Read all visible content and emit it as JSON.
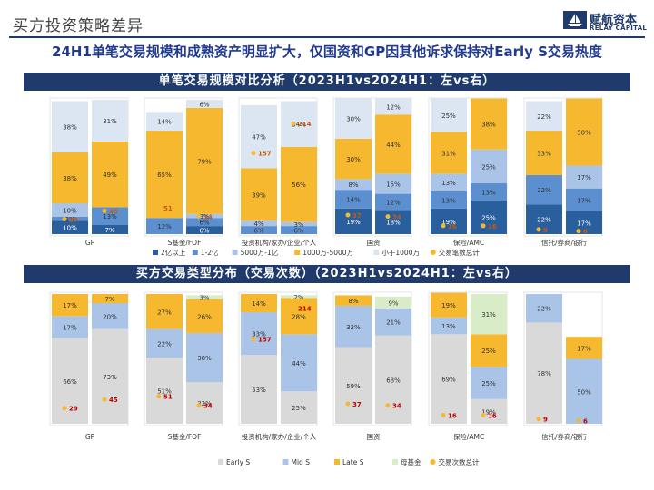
{
  "header": {
    "title": "买方投资策略差异"
  },
  "logo": {
    "cn": "赋航资本",
    "en": "RELAY CAPITAL"
  },
  "headline": "24H1单笔交易规模和成熟资产明显扩大，仅国资和GP因其他诉求保持对Early S交易热度",
  "colors": {
    "navy": "#1f3a6b",
    "dark_blue": "#2a5f9e",
    "mid_blue": "#5b8fcf",
    "light_blue": "#a9c4e6",
    "gold": "#f5b82e",
    "pale": "#dce6f2",
    "gray": "#d9d9d9",
    "green": "#d8ecc8",
    "red": "#c00000",
    "dot": "#f5b82e"
  },
  "chart_data": [
    {
      "type": "bar",
      "title": "单笔交易规模对比分析（2023H1vs2024H1：左vs右）",
      "categories": [
        "GP",
        "S基金/FOF",
        "投资机构/家办/企业/个人",
        "国资",
        "保险/AMC",
        "信托/券商/银行"
      ],
      "periods": [
        "2023H1",
        "2024H1"
      ],
      "series": [
        {
          "name": "2亿以上",
          "values": [
            [
              10,
              7
            ],
            [
              0,
              6
            ],
            [
              0,
              0
            ],
            [
              19,
              18
            ],
            [
              19,
              25
            ],
            [
              22,
              17
            ]
          ],
          "labels": [
            [
              "10%",
              "7%"
            ],
            [
              "",
              "6%"
            ],
            [
              "",
              ""
            ],
            [
              "19%",
              "18%"
            ],
            [
              "19%",
              "25%"
            ],
            [
              "22%",
              "17%"
            ]
          ]
        },
        {
          "name": "1-2亿",
          "values": [
            [
              3,
              13
            ],
            [
              12,
              6
            ],
            [
              6,
              6
            ],
            [
              14,
              12
            ],
            [
              13,
              13
            ],
            [
              22,
              17
            ]
          ],
          "labels": [
            [
              "3%",
              "13%"
            ],
            [
              "12%",
              "6%"
            ],
            [
              "6%",
              "6%"
            ],
            [
              "14%",
              "12%"
            ],
            [
              "13%",
              "13%"
            ],
            [
              "22%",
              "17%"
            ]
          ]
        },
        {
          "name": "5000万-1亿",
          "values": [
            [
              10,
              0
            ],
            [
              0,
              3
            ],
            [
              4,
              3
            ],
            [
              8,
              15
            ],
            [
              13,
              25
            ],
            [
              0,
              17
            ]
          ],
          "labels": [
            [
              "10%",
              ""
            ],
            [
              "",
              "3%"
            ],
            [
              "4%",
              "3%"
            ],
            [
              "8%",
              "15%"
            ],
            [
              "13%",
              "25%"
            ],
            [
              "",
              "17%"
            ]
          ]
        },
        {
          "name": "1000万-5000万",
          "values": [
            [
              38,
              49
            ],
            [
              65,
              79
            ],
            [
              39,
              56
            ],
            [
              30,
              44
            ],
            [
              31,
              38
            ],
            [
              33,
              50
            ]
          ],
          "labels": [
            [
              "38%",
              "49%"
            ],
            [
              "65%",
              "79%"
            ],
            [
              "39%",
              "56%"
            ],
            [
              "30%",
              "44%"
            ],
            [
              "31%",
              "38%"
            ],
            [
              "33%",
              "50%"
            ]
          ]
        },
        {
          "name": "小于1000万",
          "values": [
            [
              38,
              31
            ],
            [
              14,
              6
            ],
            [
              47,
              34
            ],
            [
              30,
              12
            ],
            [
              25,
              0
            ],
            [
              22,
              0
            ]
          ],
          "labels": [
            [
              "38%",
              "31%"
            ],
            [
              "14%",
              "6%"
            ],
            [
              "47%",
              "34%"
            ],
            [
              "30%",
              "12%"
            ],
            [
              "25%",
              ""
            ],
            [
              "22%",
              ""
            ]
          ]
        }
      ],
      "line": {
        "name": "交易笔数总计",
        "values": [
          [
            29,
            45
          ],
          [
            51,
            34
          ],
          [
            157,
            214
          ],
          [
            37,
            34
          ],
          [
            16,
            16
          ],
          [
            9,
            6
          ]
        ]
      },
      "legend": [
        "2亿以上",
        "1-2亿",
        "5000万-1亿",
        "1000万-5000万",
        "小于1000万",
        "交易笔数总计"
      ]
    },
    {
      "type": "bar",
      "title": "买方交易类型分布（交易次数）（2023H1vs2024H1：左vs右）",
      "categories": [
        "GP",
        "S基金/FOF",
        "投资机构/家办/企业/个人",
        "国资",
        "保险/AMC",
        "信托/券商/银行"
      ],
      "periods": [
        "2023H1",
        "2024H1"
      ],
      "series": [
        {
          "name": "Early S",
          "values": [
            [
              66,
              73
            ],
            [
              51,
              32
            ],
            [
              53,
              25
            ],
            [
              59,
              68
            ],
            [
              69,
              19
            ],
            [
              78,
              0
            ]
          ],
          "labels": [
            [
              "66%",
              "73%"
            ],
            [
              "51%",
              "32%"
            ],
            [
              "53%",
              "25%"
            ],
            [
              "59%",
              "68%"
            ],
            [
              "69%",
              "19%"
            ],
            [
              "78%",
              ""
            ]
          ]
        },
        {
          "name": "Mid S",
          "values": [
            [
              17,
              20
            ],
            [
              22,
              38
            ],
            [
              33,
              44
            ],
            [
              32,
              21
            ],
            [
              13,
              25
            ],
            [
              22,
              50
            ]
          ],
          "labels": [
            [
              "17%",
              "20%"
            ],
            [
              "22%",
              "38%"
            ],
            [
              "33%",
              "44%"
            ],
            [
              "32%",
              "21%"
            ],
            [
              "13%",
              "25%"
            ],
            [
              "22%",
              "50%"
            ]
          ]
        },
        {
          "name": "Late S",
          "values": [
            [
              17,
              7
            ],
            [
              27,
              26
            ],
            [
              14,
              28
            ],
            [
              8,
              0
            ],
            [
              19,
              25
            ],
            [
              0,
              17
            ]
          ],
          "labels": [
            [
              "17%",
              "7%"
            ],
            [
              "27%",
              "26%"
            ],
            [
              "14%",
              "28%"
            ],
            [
              "8%",
              ""
            ],
            [
              "19%",
              "25%"
            ],
            [
              "",
              "17%"
            ]
          ]
        },
        {
          "name": "母基金",
          "values": [
            [
              0,
              0
            ],
            [
              0,
              3
            ],
            [
              0,
              2
            ],
            [
              0,
              9
            ],
            [
              0,
              31
            ],
            [
              0,
              0
            ]
          ],
          "labels": [
            [
              "",
              ""
            ],
            [
              "",
              "3%"
            ],
            [
              "",
              "2%"
            ],
            [
              "",
              "9%"
            ],
            [
              "",
              "31%"
            ],
            [
              "",
              ""
            ]
          ]
        }
      ],
      "line": {
        "name": "交易次数总计",
        "values": [
          [
            29,
            45
          ],
          [
            51,
            34
          ],
          [
            157,
            214
          ],
          [
            37,
            34
          ],
          [
            16,
            16
          ],
          [
            9,
            6
          ]
        ]
      },
      "legend": [
        "Early S",
        "Mid S",
        "Late S",
        "母基金",
        "交易次数总计"
      ]
    }
  ]
}
